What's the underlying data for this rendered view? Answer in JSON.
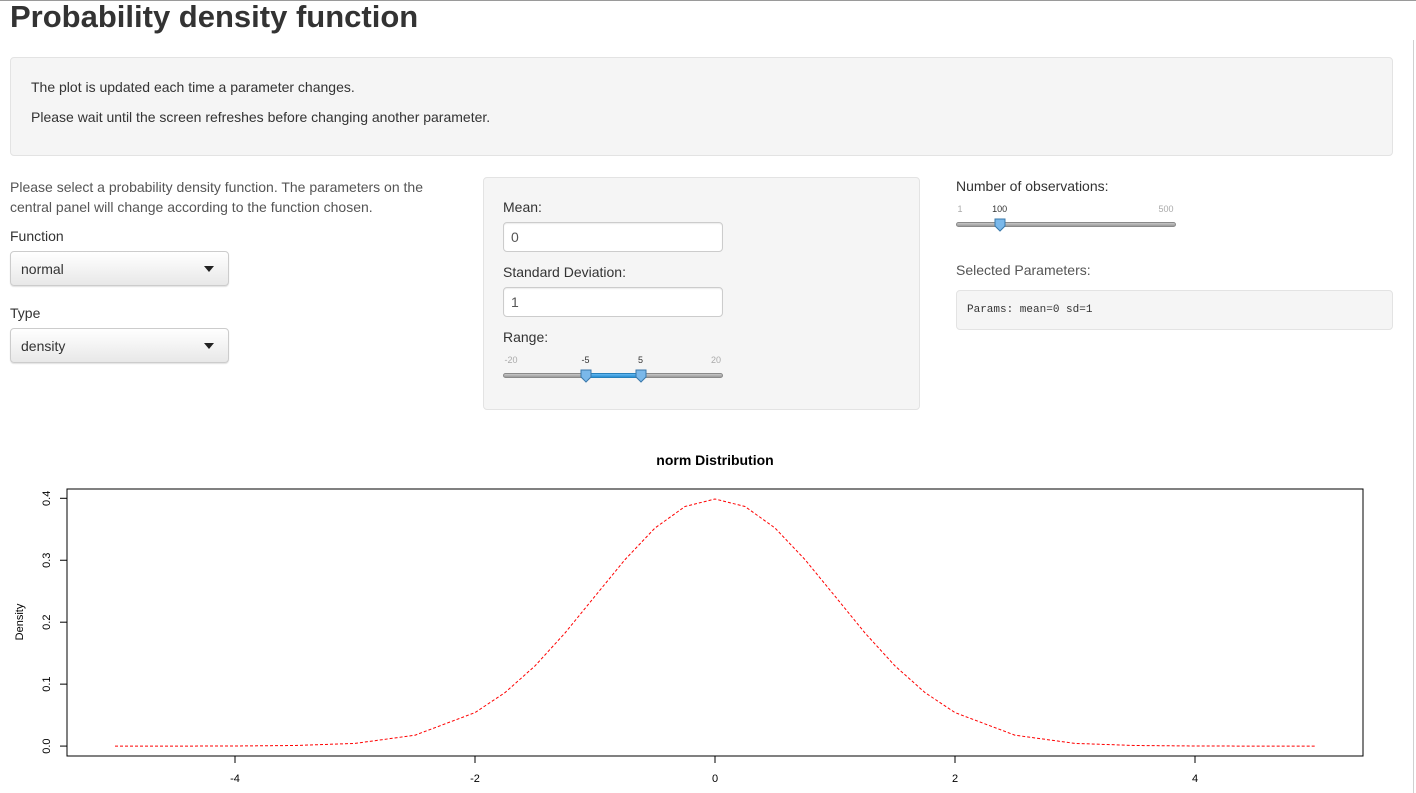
{
  "page": {
    "title": "Probability density function"
  },
  "info": {
    "line1": "The plot is updated each time a parameter changes.",
    "line2": "Please wait until the screen refreshes before changing another parameter."
  },
  "left": {
    "help": "Please select a probability density function. The parameters on the central panel will change according to the function chosen.",
    "function_label": "Function",
    "function_value": "normal",
    "type_label": "Type",
    "type_value": "density"
  },
  "center": {
    "mean_label": "Mean:",
    "mean_value": "0",
    "sd_label": "Standard Deviation:",
    "sd_value": "1",
    "range_label": "Range:",
    "range_min_label": "-20",
    "range_max_label": "20",
    "range_low_label": "-5",
    "range_high_label": "5",
    "range_min": -20,
    "range_max": 20,
    "range_low": -5,
    "range_high": 5
  },
  "right": {
    "obs_label": "Number of observations:",
    "obs_min_label": "1",
    "obs_max_label": "500",
    "obs_value_label": "100",
    "obs_min": 1,
    "obs_max": 500,
    "obs_value": 100,
    "selected_label": "Selected Parameters:",
    "params_text": "Params: mean=0 sd=1"
  },
  "colors": {
    "curve": "#ff0000",
    "slider_selection": "#2a8ed0",
    "knob": "#7ab8ea"
  },
  "chart_data": {
    "type": "line",
    "title": "norm Distribution",
    "xlabel": "",
    "ylabel": "Density",
    "xlim": [
      -5.4,
      5.4
    ],
    "ylim": [
      -0.016,
      0.415
    ],
    "x_ticks": [
      -4,
      -2,
      0,
      2,
      4
    ],
    "x_tick_labels": [
      "-4",
      "-2",
      "0",
      "2",
      "4"
    ],
    "y_ticks": [
      0.0,
      0.1,
      0.2,
      0.3,
      0.4
    ],
    "y_tick_labels": [
      "0.0",
      "0.1",
      "0.2",
      "0.3",
      "0.4"
    ],
    "line_style": "dashed",
    "grid": false,
    "series": [
      {
        "x": [
          -5.0,
          -4.5,
          -4.0,
          -3.5,
          -3.0,
          -2.5,
          -2.0,
          -1.75,
          -1.5,
          -1.25,
          -1.0,
          -0.75,
          -0.5,
          -0.25,
          0.0,
          0.25,
          0.5,
          0.75,
          1.0,
          1.25,
          1.5,
          1.75,
          2.0,
          2.5,
          3.0,
          3.5,
          4.0,
          4.5,
          5.0
        ],
        "values": [
          0.0,
          0.0,
          0.0001,
          0.0009,
          0.0044,
          0.0175,
          0.054,
          0.0863,
          0.1295,
          0.1826,
          0.242,
          0.3011,
          0.3521,
          0.3867,
          0.3989,
          0.3867,
          0.3521,
          0.3011,
          0.242,
          0.1826,
          0.1295,
          0.0863,
          0.054,
          0.0175,
          0.0044,
          0.0009,
          0.0001,
          0.0,
          0.0
        ]
      }
    ]
  }
}
